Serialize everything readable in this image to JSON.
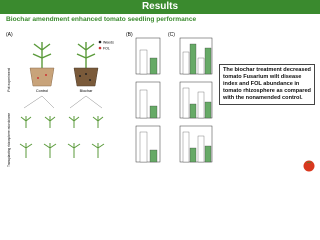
{
  "header": {
    "title": "Results"
  },
  "subtitle": "Biochar amendment enhanced tomato seedling performance",
  "figure": {
    "panels": [
      "(A)",
      "(B)",
      "(C)"
    ],
    "pot_label": "Pot experiment",
    "transplant_label": "Transplanting rhizosphere microbiome",
    "legend": [
      "Weeds",
      "FOL"
    ],
    "treatments": [
      "Control",
      "Biochar"
    ]
  },
  "note": "The biochar treatment decreased tomato Fusarium wilt disease index and FOL abundance in tomato rhizosphere as compared with the nonamended control."
}
